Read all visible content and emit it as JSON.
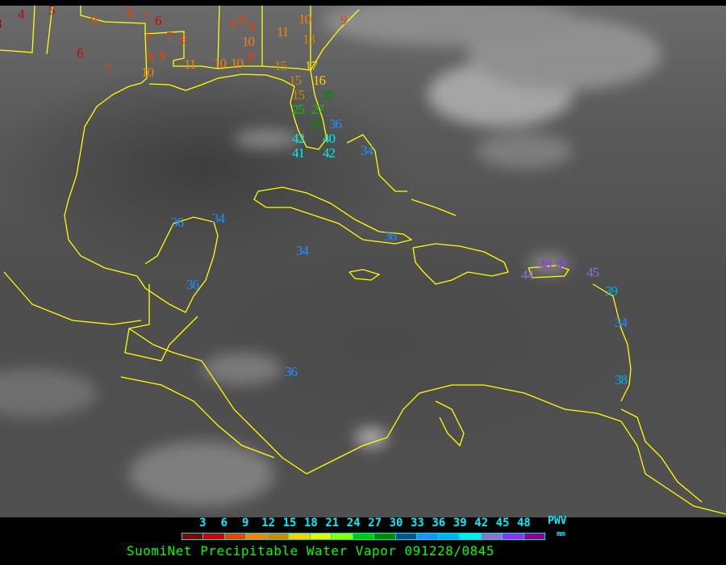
{
  "title": "SuomiNet Precipitable Water Vapor 091228/0845",
  "legend": {
    "unit_label": "PWV",
    "unit_sub": "mm",
    "ticks": [
      "3",
      "6",
      "9",
      "12",
      "15",
      "18",
      "21",
      "24",
      "27",
      "30",
      "33",
      "36",
      "39",
      "42",
      "45",
      "48"
    ],
    "colors": [
      "#8b0000",
      "#d00000",
      "#f04000",
      "#ff8000",
      "#d08800",
      "#ffd000",
      "#f0f000",
      "#90ff00",
      "#00cc00",
      "#008800",
      "#104e8b",
      "#1e90ff",
      "#00b0f0",
      "#00eeee",
      "#9070d0",
      "#9030f0",
      "#900090"
    ]
  },
  "map": {
    "coastline_color": "#ffff00",
    "stations": [
      "3",
      "4",
      "5",
      "9",
      "8",
      "7",
      "6",
      "7",
      "7",
      "9",
      "6",
      "8",
      "9",
      "7",
      "10",
      "11",
      "10",
      "10",
      "9",
      "8",
      "9",
      "10",
      "8",
      "11",
      "10",
      "13",
      "9",
      "15",
      "17",
      "15",
      "16",
      "15",
      "28",
      "25",
      "27",
      "30",
      "36",
      "42",
      "40",
      "41",
      "42",
      "34",
      "36",
      "34",
      "34",
      "36",
      "36",
      "36",
      "44",
      "48",
      "47",
      "45",
      "39",
      "34",
      "38"
    ]
  }
}
